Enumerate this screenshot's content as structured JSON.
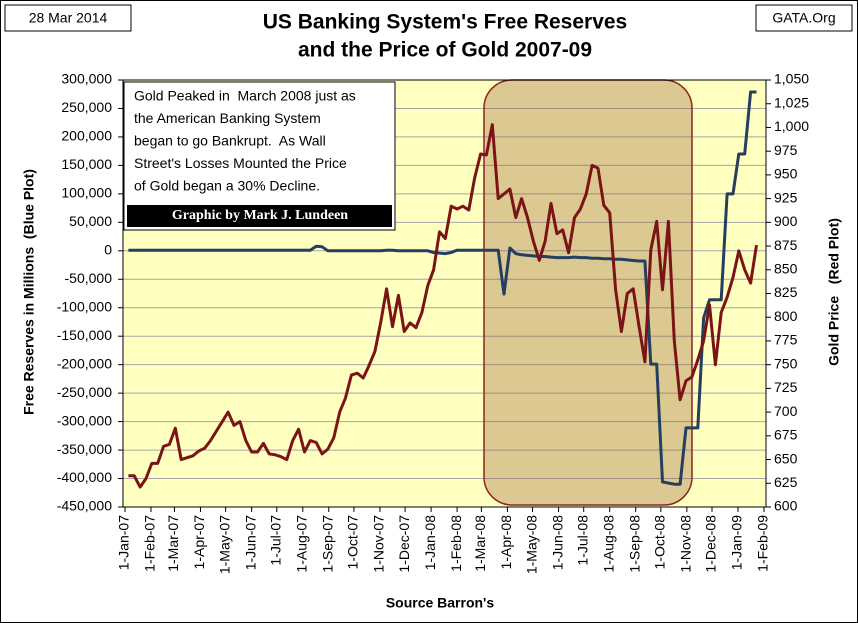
{
  "chart_data": {
    "type": "line",
    "title": [
      "US Banking System's Free Reserves",
      "and the Price of Gold 2007-09"
    ],
    "date_stamp": "28 Mar 2014",
    "source_tag": "GATA.Org",
    "annotation": [
      "Gold Peaked in  March 2008 just as",
      "the American Banking System",
      "began to go Bankrupt.  As Wall",
      "Street's Losses Mounted the Price",
      "of Gold began a 30% Decline."
    ],
    "credit": "Graphic by Mark J. Lundeen",
    "xlabel": "Source Barron's",
    "ylabel": "Free Reserves in Millions  (Blue Plot)",
    "y2label": "Gold Price   (Red Plot)",
    "grid": true,
    "x": [
      "2007-01-05",
      "2007-01-12",
      "2007-01-19",
      "2007-01-26",
      "2007-02-02",
      "2007-02-09",
      "2007-02-16",
      "2007-02-23",
      "2007-03-02",
      "2007-03-09",
      "2007-03-16",
      "2007-03-23",
      "2007-03-30",
      "2007-04-06",
      "2007-04-13",
      "2007-04-20",
      "2007-04-27",
      "2007-05-04",
      "2007-05-11",
      "2007-05-18",
      "2007-05-25",
      "2007-06-01",
      "2007-06-08",
      "2007-06-15",
      "2007-06-22",
      "2007-06-29",
      "2007-07-06",
      "2007-07-13",
      "2007-07-20",
      "2007-07-27",
      "2007-08-03",
      "2007-08-10",
      "2007-08-17",
      "2007-08-24",
      "2007-08-31",
      "2007-09-07",
      "2007-09-14",
      "2007-09-21",
      "2007-09-28",
      "2007-10-05",
      "2007-10-12",
      "2007-10-19",
      "2007-10-26",
      "2007-11-02",
      "2007-11-09",
      "2007-11-16",
      "2007-11-23",
      "2007-11-30",
      "2007-12-07",
      "2007-12-14",
      "2007-12-21",
      "2007-12-28",
      "2008-01-04",
      "2008-01-11",
      "2008-01-18",
      "2008-01-25",
      "2008-02-01",
      "2008-02-08",
      "2008-02-15",
      "2008-02-22",
      "2008-02-29",
      "2008-03-07",
      "2008-03-14",
      "2008-03-21",
      "2008-03-28",
      "2008-04-04",
      "2008-04-11",
      "2008-04-18",
      "2008-04-25",
      "2008-05-02",
      "2008-05-09",
      "2008-05-16",
      "2008-05-23",
      "2008-05-30",
      "2008-06-06",
      "2008-06-13",
      "2008-06-20",
      "2008-06-27",
      "2008-07-04",
      "2008-07-11",
      "2008-07-18",
      "2008-07-25",
      "2008-08-01",
      "2008-08-08",
      "2008-08-15",
      "2008-08-22",
      "2008-08-29",
      "2008-09-05",
      "2008-09-12",
      "2008-09-19",
      "2008-09-26",
      "2008-10-03",
      "2008-10-10",
      "2008-10-17",
      "2008-10-24",
      "2008-10-31",
      "2008-11-07",
      "2008-11-14",
      "2008-11-21",
      "2008-11-28",
      "2008-12-05",
      "2008-12-12",
      "2008-12-19",
      "2008-12-26",
      "2009-01-02",
      "2009-01-09",
      "2009-01-16",
      "2009-01-23"
    ],
    "series": [
      {
        "name": "Free Reserves",
        "color": "#243f60",
        "axis": "y",
        "values": [
          1000,
          1000,
          1000,
          1000,
          1000,
          1000,
          1000,
          1000,
          1000,
          1000,
          1000,
          1000,
          1000,
          1000,
          1000,
          1000,
          1000,
          1000,
          1000,
          1000,
          1000,
          1000,
          1000,
          1000,
          1000,
          1000,
          1000,
          1000,
          1000,
          1000,
          1000,
          1000,
          8000,
          7000,
          0,
          0,
          0,
          0,
          0,
          0,
          0,
          0,
          0,
          0,
          1000,
          1000,
          0,
          0,
          0,
          0,
          0,
          0,
          -3000,
          -4000,
          -5000,
          -3000,
          1000,
          1000,
          1000,
          1000,
          1000,
          1000,
          1000,
          1000,
          -76000,
          5000,
          -5000,
          -7000,
          -8000,
          -9000,
          -10000,
          -10000,
          -11000,
          -12000,
          -12000,
          -12000,
          -11000,
          -12000,
          -12000,
          -13000,
          -13000,
          -14000,
          -14000,
          -15000,
          -15000,
          -16000,
          -17000,
          -18000,
          -18000,
          -199000,
          -199000,
          -406000,
          -408000,
          -410000,
          -410000,
          -311000,
          -311000,
          -311000,
          -118000,
          -86000,
          -86000,
          -86000,
          100000,
          100000,
          170000,
          170000,
          279000,
          279000
        ]
      },
      {
        "name": "Gold Price",
        "color": "#7b1416",
        "axis": "y2",
        "values": [
          633,
          633,
          621,
          630,
          646,
          646,
          664,
          666,
          683,
          650,
          652,
          654,
          659,
          662,
          670,
          680,
          690,
          700,
          686,
          690,
          670,
          658,
          658,
          667,
          656,
          655,
          653,
          650,
          670,
          682,
          658,
          670,
          668,
          656,
          661,
          673,
          700,
          715,
          739,
          741,
          736,
          749,
          764,
          795,
          830,
          790,
          823,
          785,
          794,
          789,
          805,
          833,
          850,
          890,
          883,
          917,
          914,
          917,
          913,
          947,
          972,
          971,
          1003,
          925,
          930,
          935,
          905,
          925,
          905,
          880,
          860,
          880,
          920,
          888,
          892,
          868,
          905,
          914,
          930,
          960,
          957,
          918,
          910,
          829,
          785,
          825,
          830,
          790,
          753,
          871,
          901,
          829,
          901,
          775,
          713,
          733,
          737,
          755,
          775,
          813,
          750,
          805,
          821,
          842,
          870,
          850,
          836,
          876
        ]
      }
    ],
    "xlim": [
      "2007-01-01",
      "2009-02-01"
    ],
    "xticks": [
      {
        "value": "2007-01-01",
        "label": "1-Jan-07"
      },
      {
        "value": "2007-02-01",
        "label": "1-Feb-07"
      },
      {
        "value": "2007-03-01",
        "label": "1-Mar-07"
      },
      {
        "value": "2007-04-01",
        "label": "1-Apr-07"
      },
      {
        "value": "2007-05-01",
        "label": "1-May-07"
      },
      {
        "value": "2007-06-01",
        "label": "1-Jun-07"
      },
      {
        "value": "2007-07-01",
        "label": "1-Jul-07"
      },
      {
        "value": "2007-08-01",
        "label": "1-Aug-07"
      },
      {
        "value": "2007-09-01",
        "label": "1-Sep-07"
      },
      {
        "value": "2007-10-01",
        "label": "1-Oct-07"
      },
      {
        "value": "2007-11-01",
        "label": "1-Nov-07"
      },
      {
        "value": "2007-12-01",
        "label": "1-Dec-07"
      },
      {
        "value": "2008-01-01",
        "label": "1-Jan-08"
      },
      {
        "value": "2008-02-01",
        "label": "1-Feb-08"
      },
      {
        "value": "2008-03-01",
        "label": "1-Mar-08"
      },
      {
        "value": "2008-04-01",
        "label": "1-Apr-08"
      },
      {
        "value": "2008-05-01",
        "label": "1-May-08"
      },
      {
        "value": "2008-06-01",
        "label": "1-Jun-08"
      },
      {
        "value": "2008-07-01",
        "label": "1-Jul-08"
      },
      {
        "value": "2008-08-01",
        "label": "1-Aug-08"
      },
      {
        "value": "2008-09-01",
        "label": "1-Sep-08"
      },
      {
        "value": "2008-10-01",
        "label": "1-Oct-08"
      },
      {
        "value": "2008-11-01",
        "label": "1-Nov-08"
      },
      {
        "value": "2008-12-01",
        "label": "1-Dec-08"
      },
      {
        "value": "2009-01-01",
        "label": "1-Jan-09"
      },
      {
        "value": "2009-02-01",
        "label": "1-Feb-09"
      }
    ],
    "ylim": [
      -450000,
      300000
    ],
    "yticks": [
      {
        "value": 300000,
        "label": "300,000"
      },
      {
        "value": 250000,
        "label": "250,000"
      },
      {
        "value": 200000,
        "label": "200,000"
      },
      {
        "value": 150000,
        "label": "150,000"
      },
      {
        "value": 100000,
        "label": "100,000"
      },
      {
        "value": 50000,
        "label": "50,000"
      },
      0,
      {
        "value": -50000,
        "label": "-50,000"
      },
      {
        "value": -100000,
        "label": "-100,000"
      },
      {
        "value": -150000,
        "label": "-150,000"
      },
      {
        "value": -200000,
        "label": "-200,000"
      },
      {
        "value": -250000,
        "label": "-250,000"
      },
      {
        "value": -300000,
        "label": "-300,000"
      },
      {
        "value": -350000,
        "label": "-350,000"
      },
      {
        "value": -400000,
        "label": "-400,000"
      },
      {
        "value": -450000,
        "label": "-450,000"
      }
    ],
    "y2lim": [
      600,
      1050
    ],
    "y2ticks": [
      {
        "value": 1050,
        "label": "1,050"
      },
      {
        "value": 1025,
        "label": "1,025"
      },
      {
        "value": 1000,
        "label": "1,000"
      },
      975,
      950,
      925,
      900,
      875,
      850,
      825,
      800,
      775,
      750,
      725,
      700,
      675,
      650,
      625,
      600
    ]
  }
}
